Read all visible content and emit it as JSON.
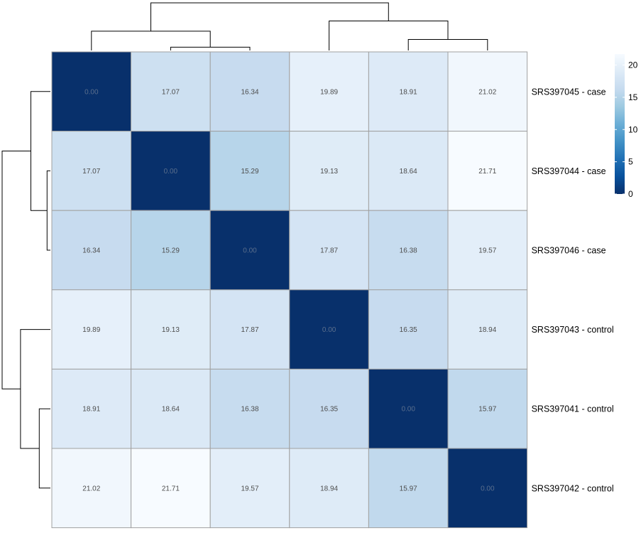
{
  "chart_data": {
    "type": "heatmap",
    "title": "",
    "xlabel": "",
    "ylabel": "",
    "rows": [
      "SRS397045 - case",
      "SRS397044 - case",
      "SRS397046 - case",
      "SRS397043 - control",
      "SRS397041 - control",
      "SRS397042 - control"
    ],
    "matrix": [
      [
        0.0,
        17.07,
        16.34,
        19.89,
        18.91,
        21.02
      ],
      [
        17.07,
        0.0,
        15.29,
        19.13,
        18.64,
        21.71
      ],
      [
        16.34,
        15.29,
        0.0,
        17.87,
        16.38,
        19.57
      ],
      [
        19.89,
        19.13,
        17.87,
        0.0,
        16.35,
        18.94
      ],
      [
        18.91,
        18.64,
        16.38,
        16.35,
        0.0,
        15.97
      ],
      [
        21.02,
        21.71,
        19.57,
        18.94,
        15.97,
        0.0
      ]
    ],
    "display_values": [
      [
        "0.00",
        "17.07",
        "16.34",
        "19.89",
        "18.91",
        "21.02"
      ],
      [
        "17.07",
        "0.00",
        "15.29",
        "19.13",
        "18.64",
        "21.71"
      ],
      [
        "16.34",
        "15.29",
        "0.00",
        "17.87",
        "16.38",
        "19.57"
      ],
      [
        "19.89",
        "19.13",
        "17.87",
        "0.00",
        "16.35",
        "18.94"
      ],
      [
        "18.91",
        "18.64",
        "16.38",
        "16.35",
        "0.00",
        "15.97"
      ],
      [
        "21.02",
        "21.71",
        "19.57",
        "18.94",
        "15.97",
        "0.00"
      ]
    ],
    "color_scale": {
      "low": "#08306b",
      "high": "#f7fbff",
      "vmin": 0,
      "vmax": 21.71,
      "stops": [
        "#08306b",
        "#08519c",
        "#2171b5",
        "#4292c6",
        "#6baed6",
        "#9ecae1",
        "#c6dbef",
        "#deebf7",
        "#f7fbff"
      ]
    },
    "legend": {
      "position": "top-right",
      "ticks": [
        "0",
        "5",
        "10",
        "15",
        "20"
      ],
      "tick_values": [
        0,
        5,
        10,
        15,
        20
      ]
    },
    "cell_border_color": "#a0a0a0",
    "dendrogram": {
      "leaf_order": [
        0,
        1,
        2,
        3,
        4,
        5
      ],
      "merges": [
        {
          "left": "leaf:1",
          "right": "leaf:2",
          "height": 15.29
        },
        {
          "left": "leaf:4",
          "right": "leaf:5",
          "height": 15.97
        },
        {
          "left": "leaf:0",
          "right": "node:0",
          "height": 16.7
        },
        {
          "left": "leaf:3",
          "right": "node:1",
          "height": 17.6
        },
        {
          "left": "node:2",
          "right": "node:3",
          "height": 19.2
        }
      ],
      "h_min": 15.0,
      "h_max": 19.2
    }
  }
}
